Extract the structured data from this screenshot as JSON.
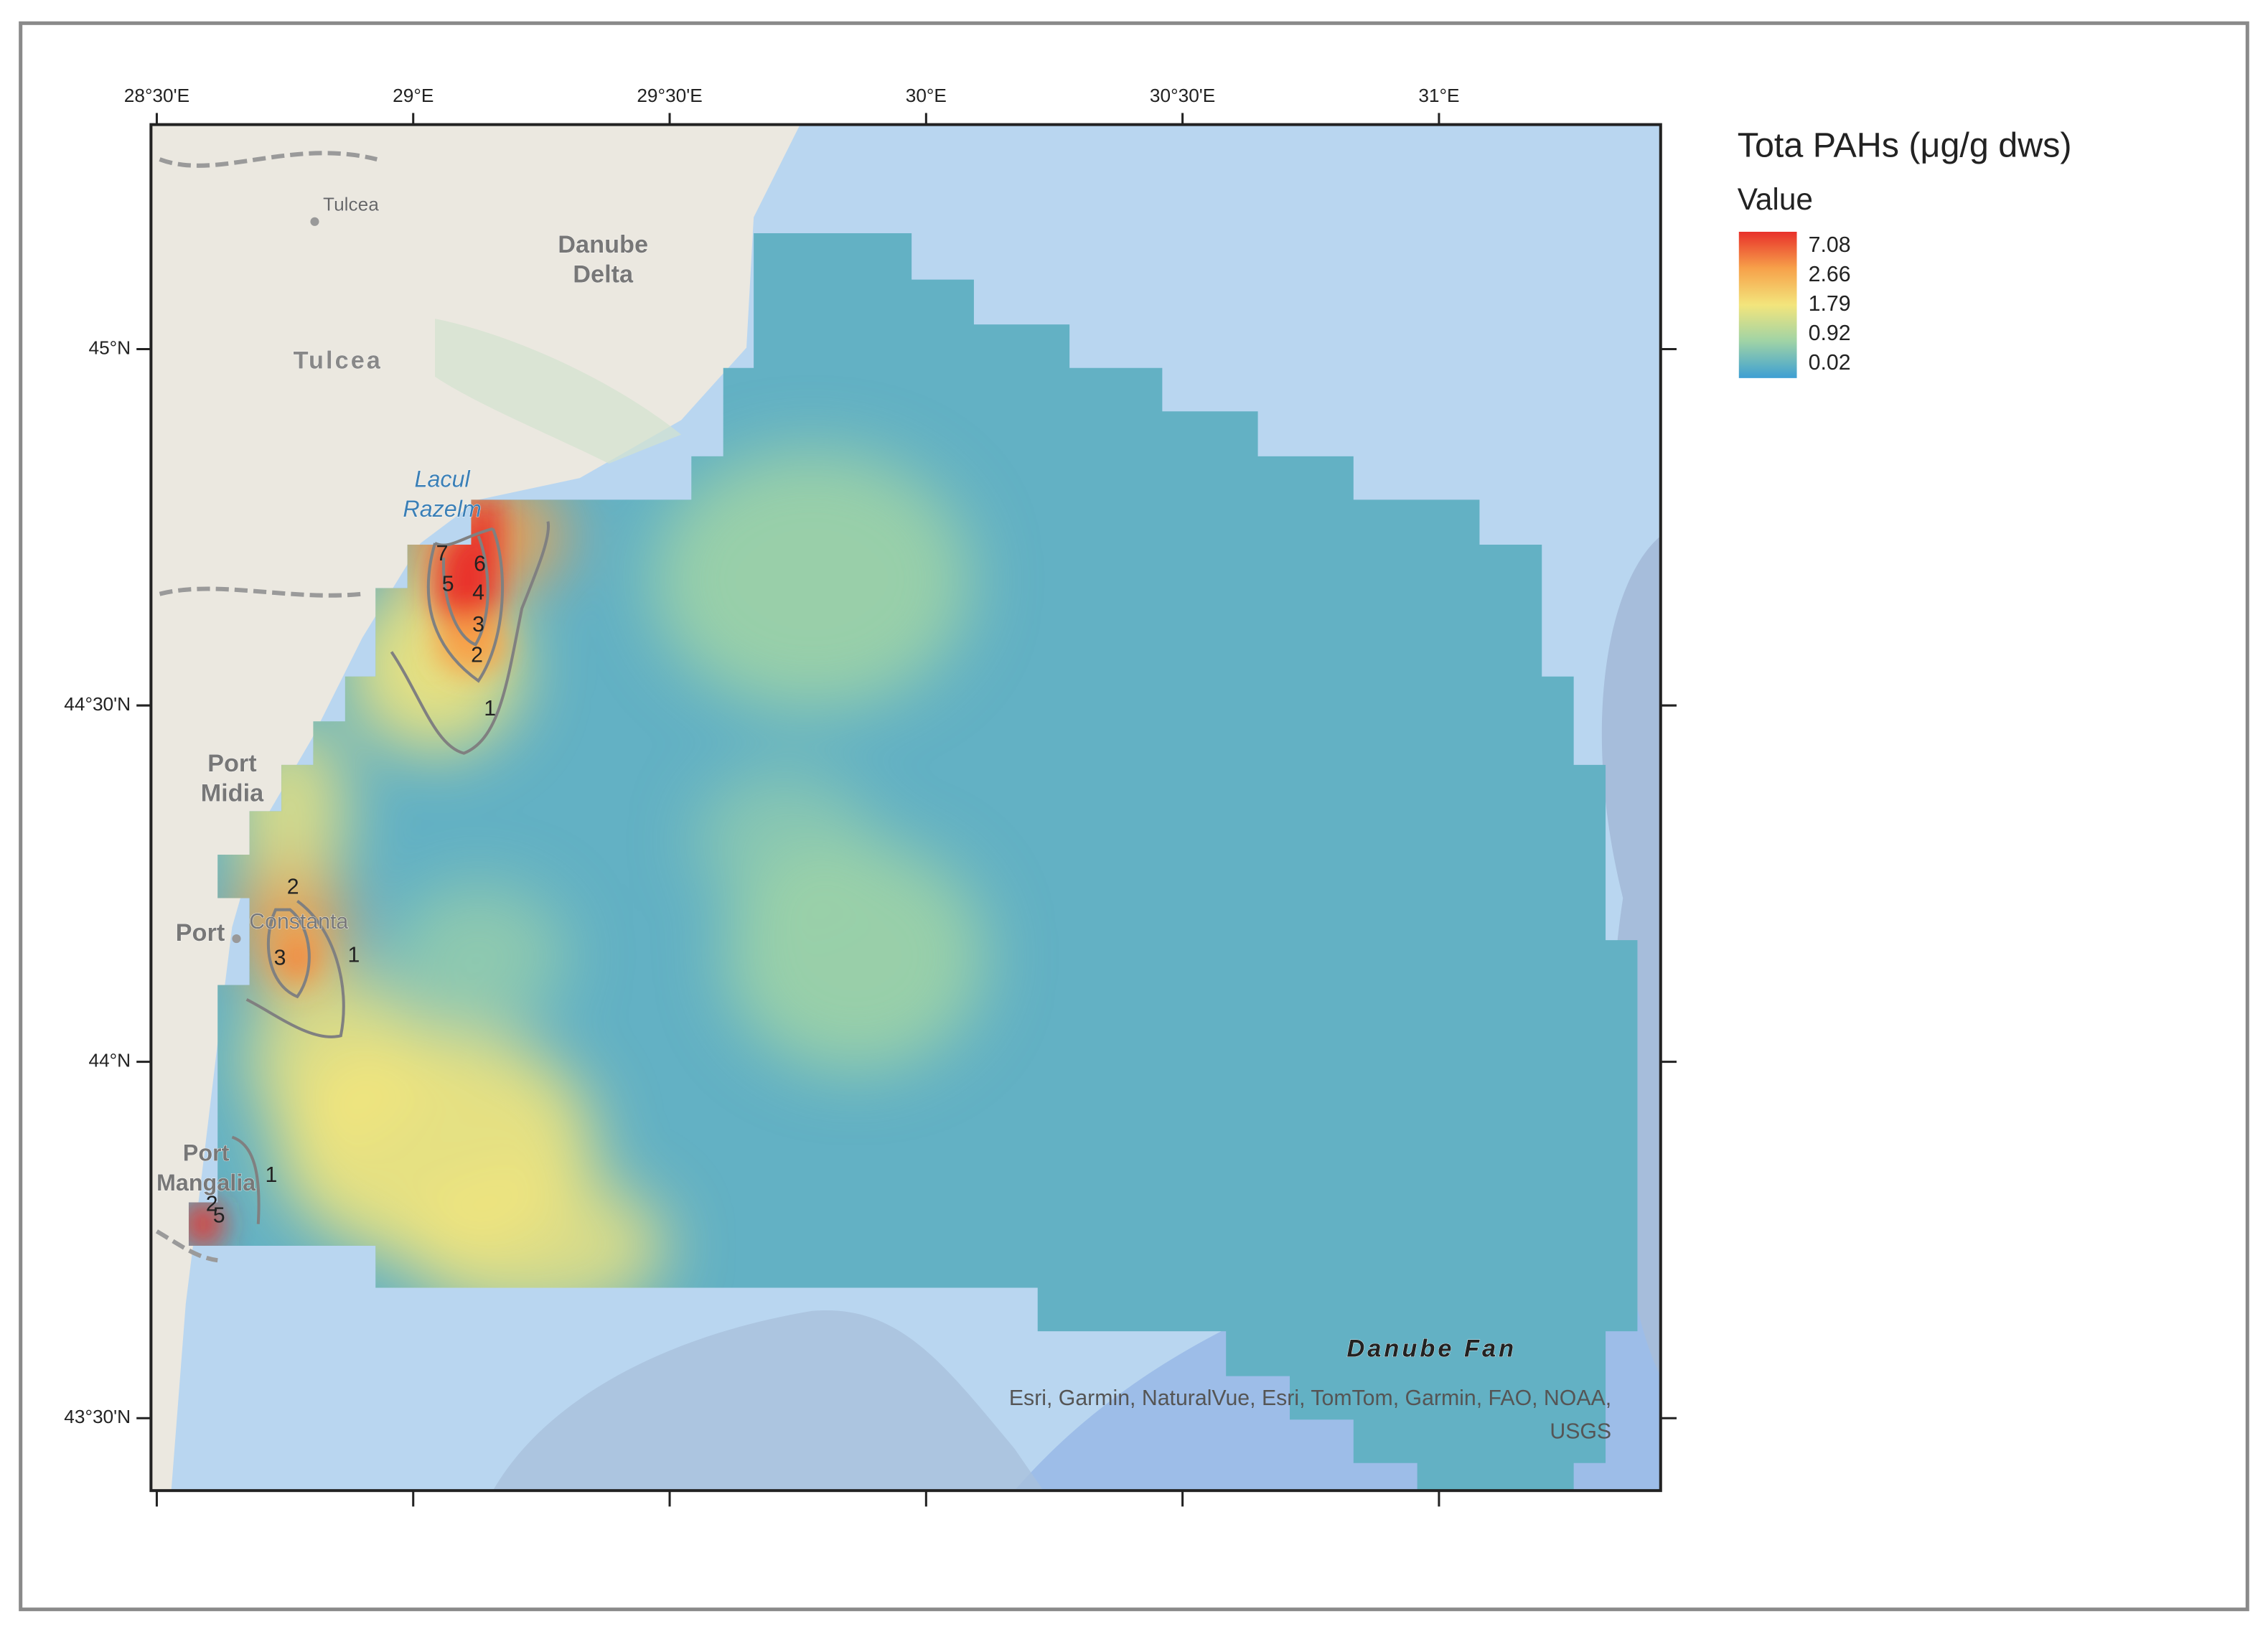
{
  "map": {
    "legend": {
      "title": "Tota PAHs (μg/g dws)",
      "subtitle": "Value",
      "labels": [
        7.08,
        2.66,
        1.79,
        0.92,
        0.02
      ],
      "colors": [
        "#e8302a",
        "#f7a14a",
        "#f3e57c",
        "#9fd3a6",
        "#3d9fd3"
      ]
    },
    "lon_ticks": [
      {
        "value": 28.5,
        "label": "28°30'E"
      },
      {
        "value": 29,
        "label": "29°E"
      },
      {
        "value": 29.5,
        "label": "29°30'E"
      },
      {
        "value": 30,
        "label": "30°E"
      },
      {
        "value": 30.5,
        "label": "30°30'E"
      },
      {
        "value": 31,
        "label": "31°E"
      }
    ],
    "lat_ticks": [
      {
        "value": 45,
        "label": "45°N"
      },
      {
        "value": 44.5,
        "label": "44°30'N"
      },
      {
        "value": 44,
        "label": "44°N"
      },
      {
        "value": 43.5,
        "label": "43°30'N"
      }
    ],
    "places": [
      {
        "lines": [
          "Tulcea"
        ]
      },
      {
        "lines": [
          "Danube",
          "Delta"
        ]
      },
      {
        "lines": [
          "Tulcea"
        ]
      },
      {
        "lines": [
          "Lacul",
          "Razelm"
        ]
      },
      {
        "lines": [
          "Port",
          "Midia"
        ]
      },
      {
        "lines": [
          "Port"
        ]
      },
      {
        "lines": [
          "Constanta"
        ]
      },
      {
        "lines": [
          "Port",
          "Mangalia"
        ]
      },
      {
        "lines": [
          "Danube Fan"
        ]
      }
    ],
    "contour_labels": [
      7,
      5,
      6,
      4,
      3,
      2,
      1,
      2,
      3,
      1,
      1,
      2,
      5
    ],
    "attribution": [
      "Esri, Garmin, NaturalVue, Esri, TomTom, Garmin, FAO, NOAA,",
      "USGS"
    ]
  }
}
